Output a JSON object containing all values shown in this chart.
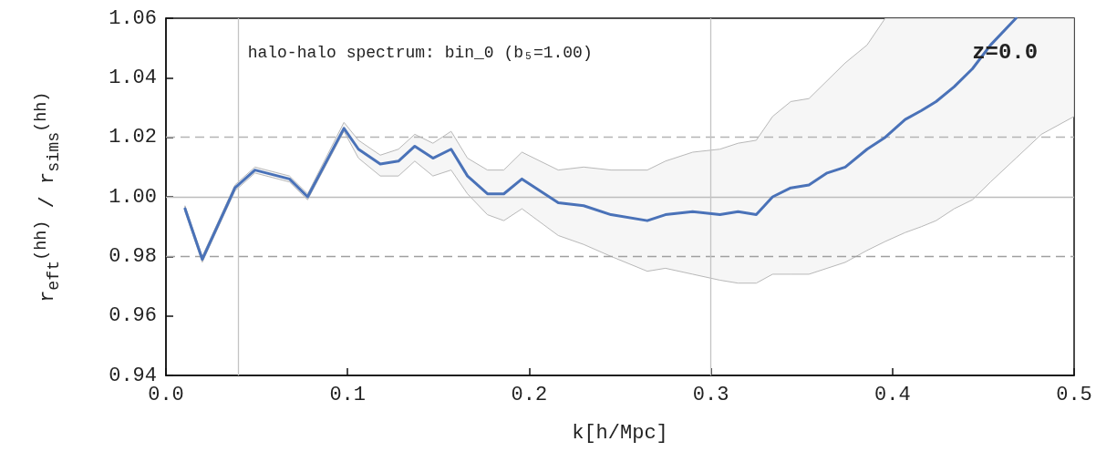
{
  "chart_data": {
    "type": "line",
    "xlabel": "k[h/Mpc]",
    "ylabel": "r$_{eft}$$^{(hh)}$ / r$_{sims}$$^{(hh)}$",
    "annotations": [
      "halo-halo spectrum: bin_0 (b₅=1.00)",
      "z=0.0"
    ],
    "x": [
      0.0105,
      0.02,
      0.038,
      0.049,
      0.068,
      0.078,
      0.098,
      0.106,
      0.118,
      0.128,
      0.137,
      0.147,
      0.157,
      0.166,
      0.177,
      0.186,
      0.196,
      0.216,
      0.23,
      0.245,
      0.265,
      0.275,
      0.29,
      0.305,
      0.315,
      0.325,
      0.334,
      0.344,
      0.354,
      0.364,
      0.374,
      0.386,
      0.396,
      0.407,
      0.416,
      0.424,
      0.434,
      0.444,
      0.454,
      0.468,
      0.482,
      0.5
    ],
    "series": [
      {
        "color": "#4a72b8",
        "values": [
          0.996,
          0.979,
          1.003,
          1.009,
          1.006,
          1.0,
          1.023,
          1.016,
          1.011,
          1.012,
          1.017,
          1.013,
          1.016,
          1.007,
          1.001,
          1.001,
          1.006,
          0.998,
          0.997,
          0.994,
          0.992,
          0.994,
          0.995,
          0.994,
          0.995,
          0.994,
          1.0,
          1.003,
          1.004,
          1.008,
          1.01,
          1.016,
          1.02,
          1.026,
          1.029,
          1.032,
          1.037,
          1.043,
          1.051,
          1.06,
          null,
          null
        ],
        "lower": [
          0.995,
          0.978,
          1.002,
          1.008,
          1.005,
          0.999,
          1.022,
          1.013,
          1.007,
          1.007,
          1.012,
          1.007,
          1.009,
          1.001,
          0.994,
          0.992,
          0.996,
          0.987,
          0.984,
          0.98,
          0.975,
          0.976,
          0.974,
          0.972,
          0.971,
          0.971,
          0.974,
          0.974,
          0.974,
          0.976,
          0.978,
          0.982,
          0.985,
          0.988,
          0.99,
          0.992,
          0.996,
          0.999,
          1.005,
          1.013,
          1.021,
          1.027
        ],
        "upper": [
          0.997,
          0.98,
          1.004,
          1.01,
          1.007,
          1.001,
          1.025,
          1.019,
          1.014,
          1.016,
          1.021,
          1.018,
          1.022,
          1.013,
          1.009,
          1.009,
          1.015,
          1.009,
          1.01,
          1.009,
          1.009,
          1.012,
          1.015,
          1.016,
          1.018,
          1.019,
          1.027,
          1.032,
          1.033,
          1.039,
          1.045,
          1.051,
          1.06,
          1.06,
          1.06,
          1.06,
          1.06,
          1.06,
          1.06,
          1.06,
          1.06,
          1.06
        ]
      }
    ],
    "xlim": [
      0,
      0.5
    ],
    "xticks": [
      {
        "value": 0,
        "label": "0.0"
      },
      {
        "value": 0.1,
        "label": "0.1"
      },
      {
        "value": 0.2,
        "label": "0.2"
      },
      {
        "value": 0.3,
        "label": "0.3"
      },
      {
        "value": 0.4,
        "label": "0.4"
      },
      {
        "value": 0.5,
        "label": "0.5"
      }
    ],
    "ylim": [
      0.94,
      1.06
    ],
    "yticks": [
      0.94,
      0.96,
      0.98,
      {
        "value": 1,
        "label": "1.00"
      },
      1.02,
      1.04,
      1.06
    ],
    "ref_lines": [
      {
        "axis": "y",
        "value": 0.98,
        "color": "#a0a0a0",
        "line_style": "dashed"
      },
      {
        "axis": "y",
        "value": 1.02,
        "color": "#b4b4b4",
        "line_style": "dashed"
      },
      {
        "axis": "y",
        "value": 1,
        "color": "#bdbdbd",
        "line_style": "solid"
      },
      {
        "axis": "x",
        "value": 0.04,
        "color": "#c4c4c4",
        "line_style": "solid"
      },
      {
        "axis": "x",
        "value": 0.3,
        "color": "#c4c4c4",
        "line_style": "solid"
      }
    ],
    "grid": false,
    "marker": "none",
    "line_style": "solid"
  }
}
